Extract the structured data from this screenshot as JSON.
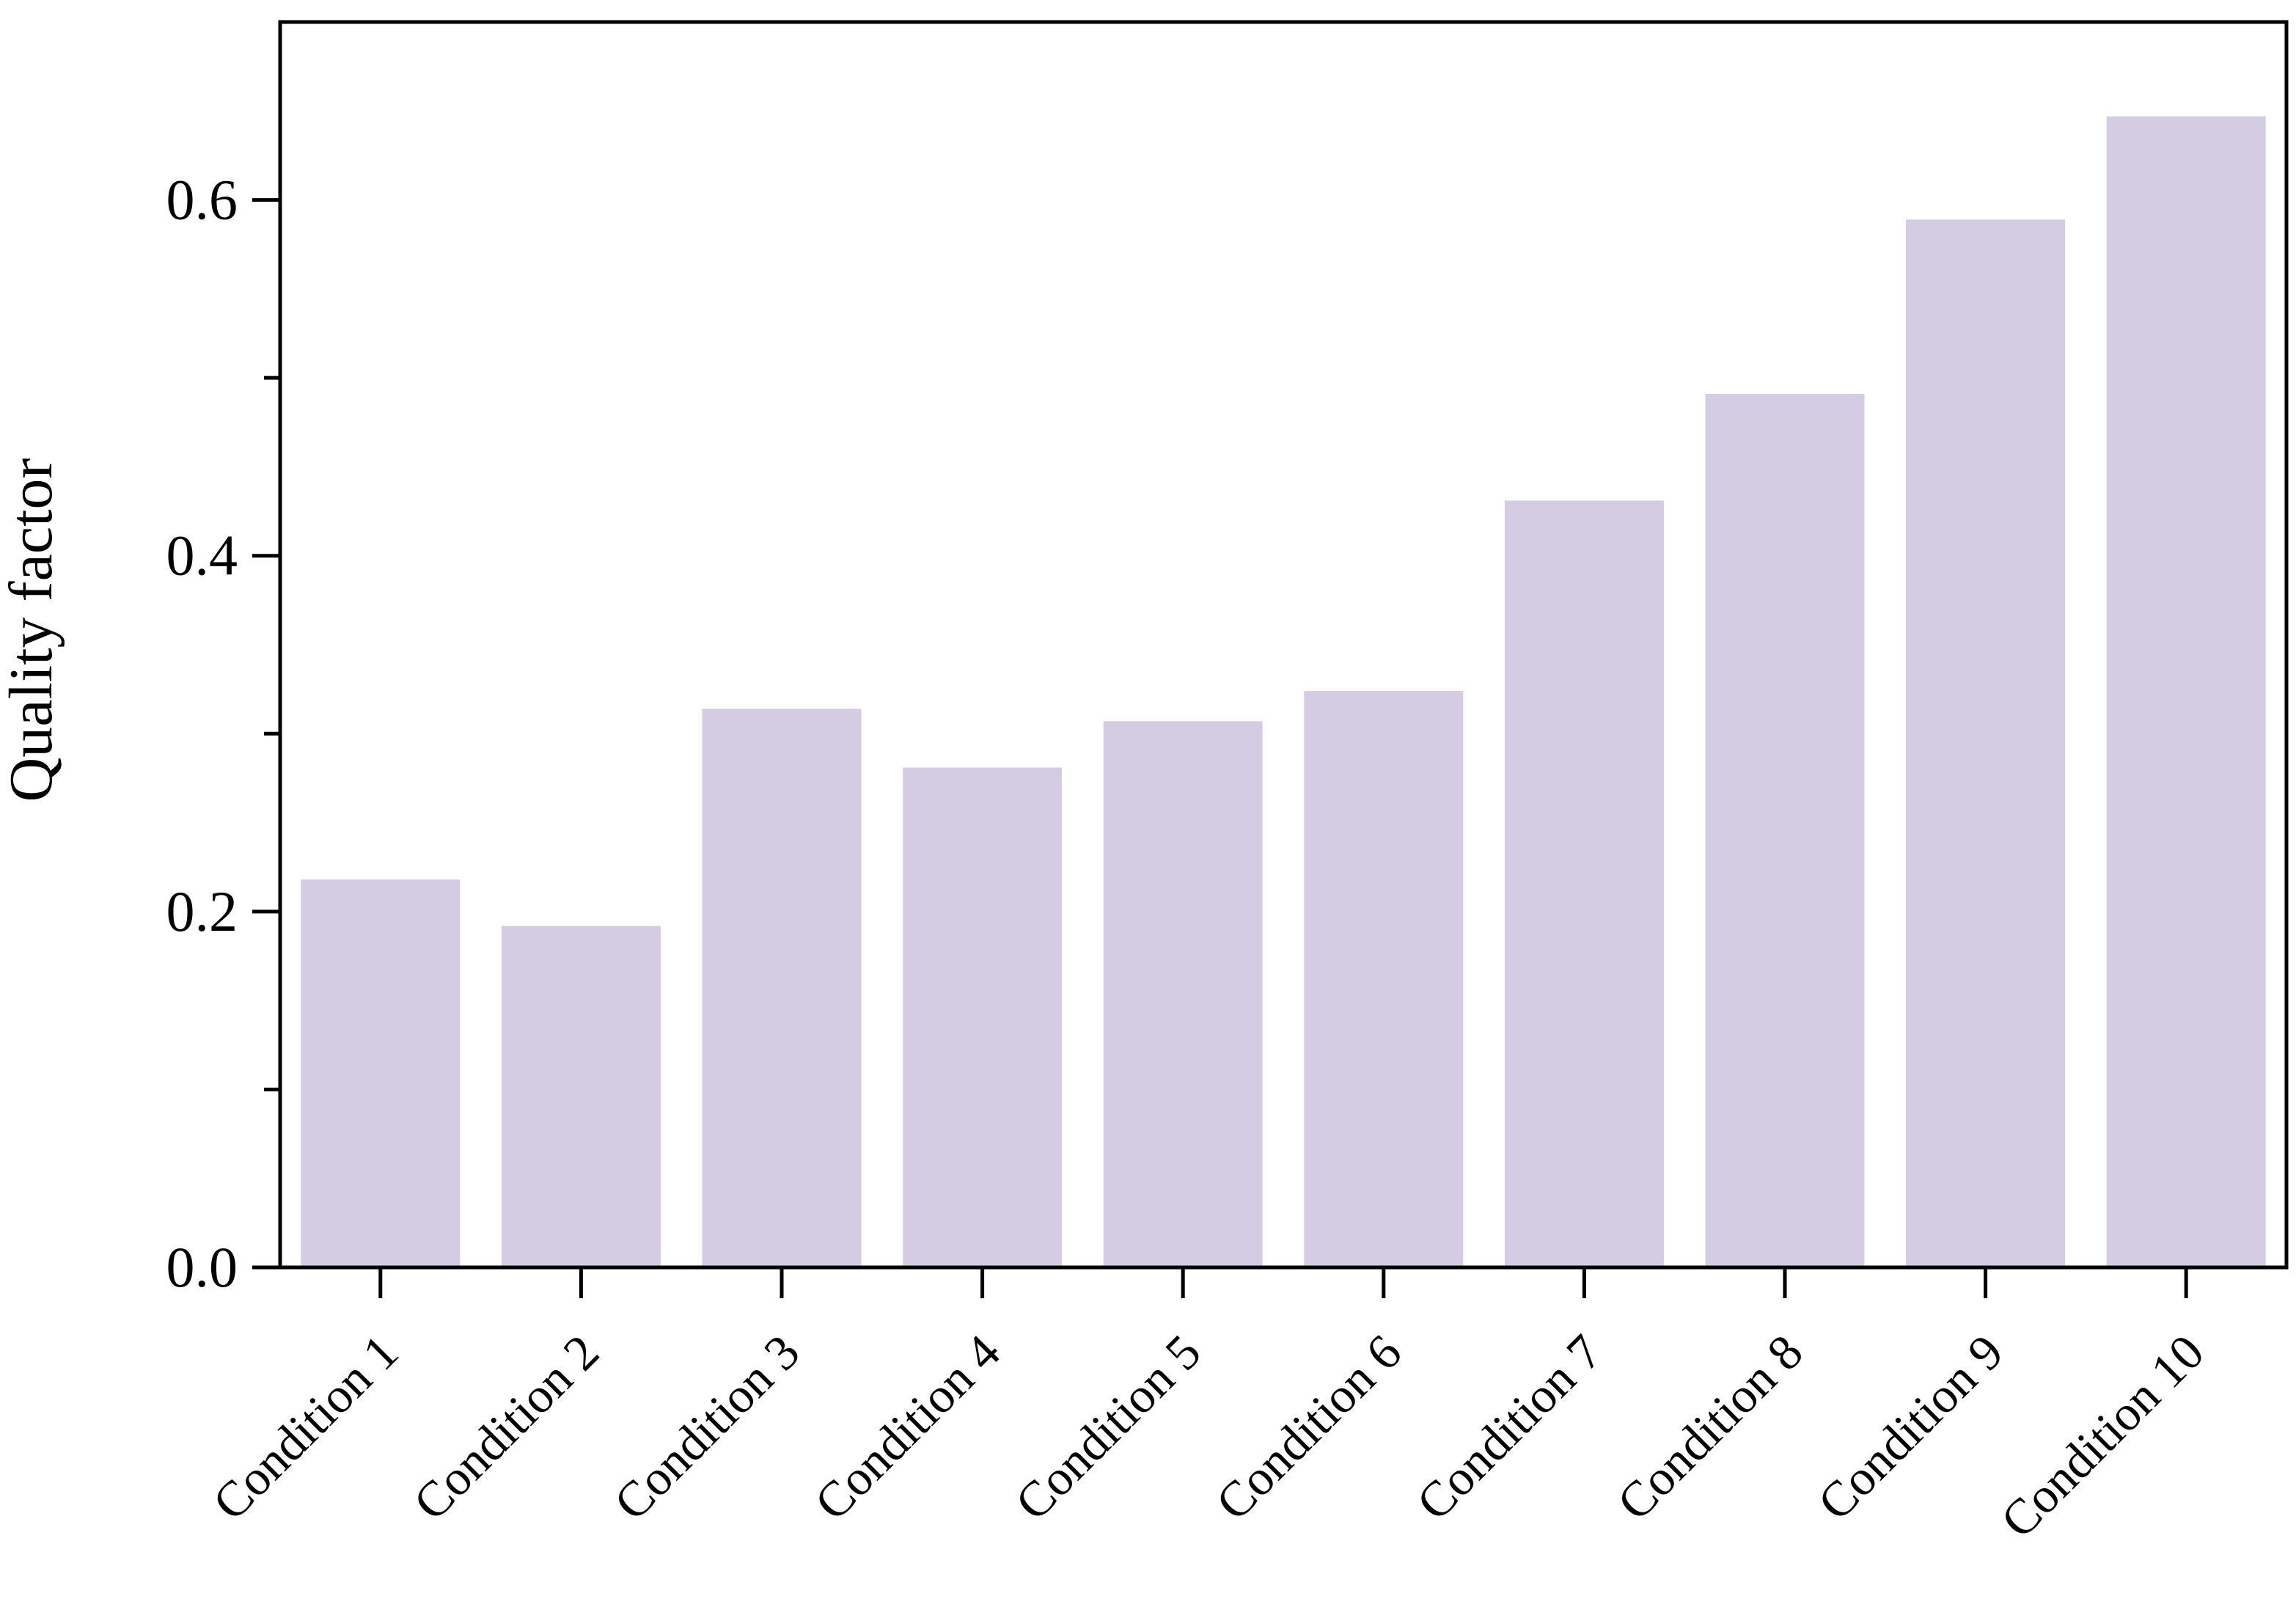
{
  "chart_data": {
    "type": "bar",
    "categories": [
      "Condition 1",
      "Condition 2",
      "Condition 3",
      "Condition 4",
      "Condition 5",
      "Condition 6",
      "Condition 7",
      "Condition 8",
      "Condition 9",
      "Condition 10"
    ],
    "values": [
      0.218,
      0.192,
      0.314,
      0.281,
      0.307,
      0.324,
      0.431,
      0.491,
      0.589,
      0.647
    ],
    "title": "",
    "xlabel": "",
    "ylabel": "Quality factor",
    "ylim": [
      0,
      0.7
    ],
    "yticks": [
      0.0,
      0.2,
      0.4,
      0.6
    ],
    "ytick_labels": [
      "0.0",
      "0.2",
      "0.4",
      "0.6"
    ],
    "minor_yticks": [
      0.1,
      0.3,
      0.5
    ],
    "grid": false,
    "bar_color": "#d3cce2",
    "axis_color": "#000000"
  }
}
